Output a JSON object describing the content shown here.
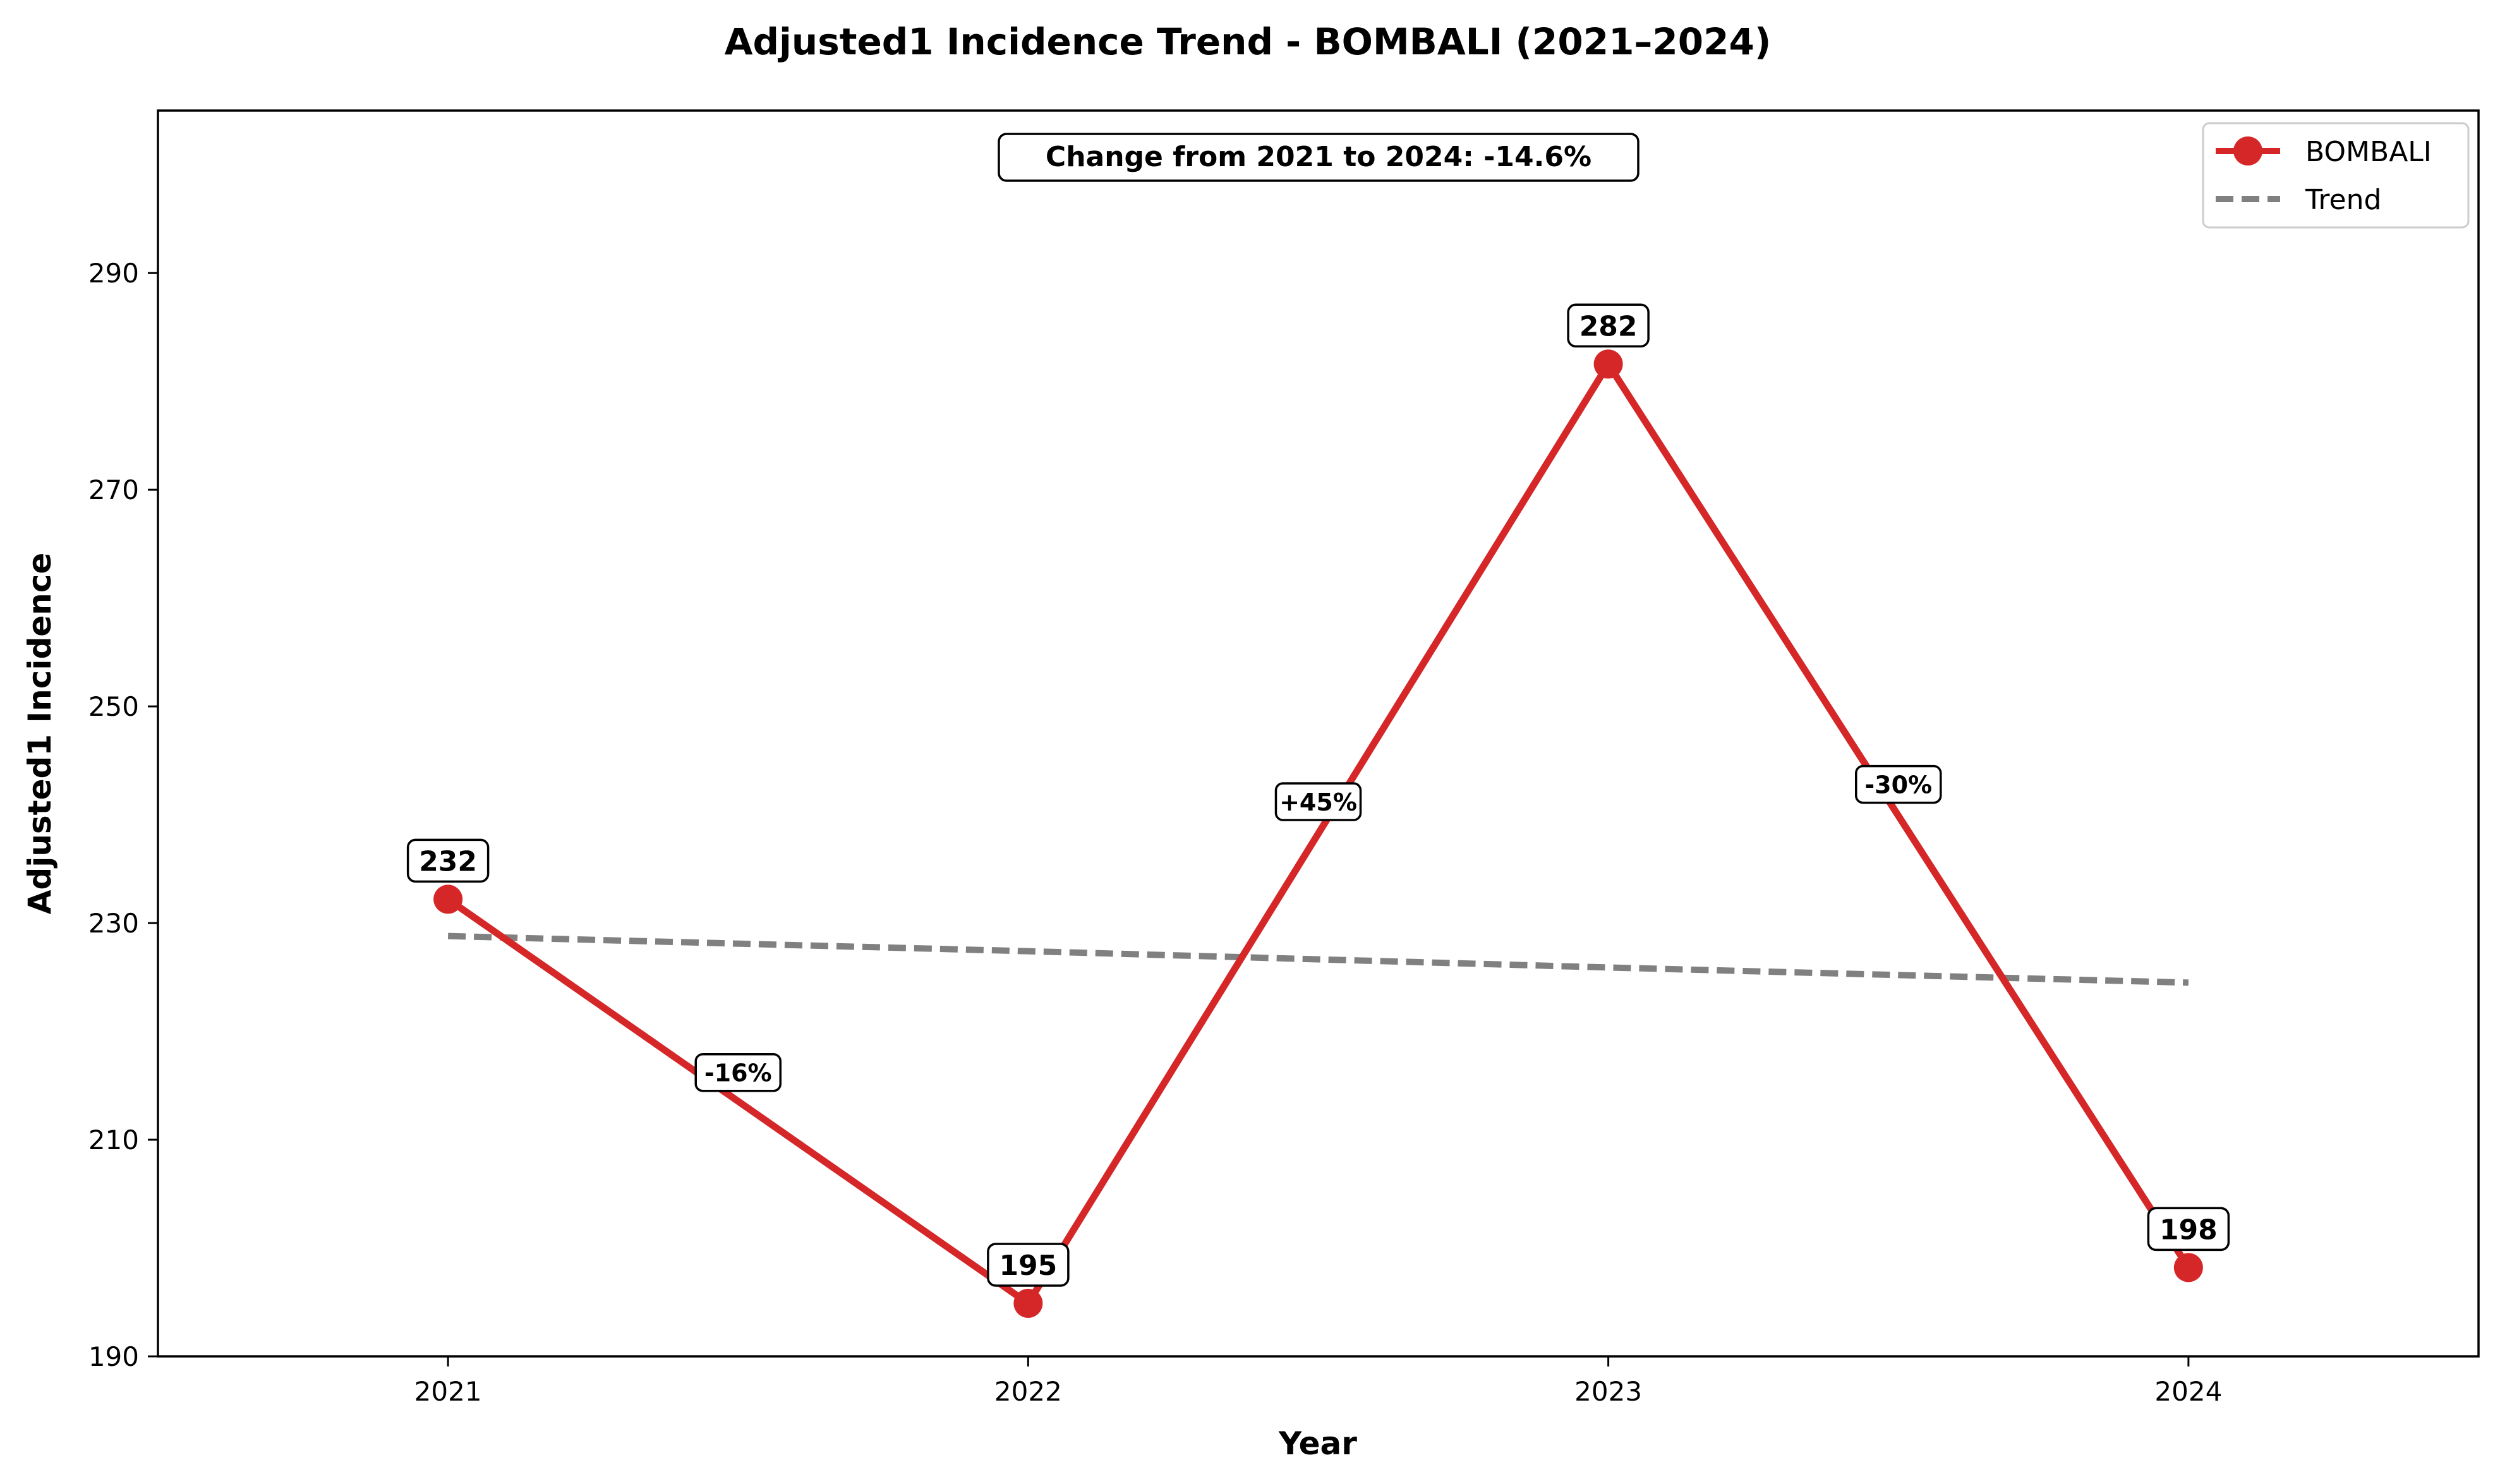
{
  "chart_data": {
    "type": "line",
    "title": "Adjusted1 Incidence Trend - BOMBALI (2021–2024)",
    "xlabel": "Year",
    "ylabel": "Adjusted1 Incidence",
    "x": [
      2021,
      2022,
      2023,
      2024
    ],
    "x_tick_labels": [
      "2021",
      "2022",
      "2023",
      "2024"
    ],
    "xlim": [
      2020.5,
      2024.5
    ],
    "ylim": [
      190,
      305
    ],
    "y_ticks": [
      190,
      210,
      230,
      250,
      270,
      290
    ],
    "grid": false,
    "legend": {
      "placement": "top-right",
      "entries": [
        "BOMBALI",
        "Trend"
      ]
    },
    "annotation": "Change from 2021 to 2024: -14.6%",
    "series": [
      {
        "name": "BOMBALI",
        "values": [
          232.2,
          194.9,
          281.6,
          198.2
        ],
        "data_labels": [
          "232",
          "195",
          "282",
          "198"
        ],
        "color": "#d62728",
        "style": "solid",
        "markers": true
      },
      {
        "name": "Trend",
        "values": [
          228.8,
          227.4,
          225.9,
          224.5
        ],
        "color": "#808080",
        "style": "dashed",
        "markers": false
      }
    ],
    "segment_changes": [
      {
        "from": 2021,
        "to": 2022,
        "label": "-16%",
        "y": 216.2
      },
      {
        "from": 2022,
        "to": 2023,
        "label": "+45%",
        "y": 241.2
      },
      {
        "from": 2023,
        "to": 2024,
        "label": "-30%",
        "y": 242.8
      }
    ]
  }
}
